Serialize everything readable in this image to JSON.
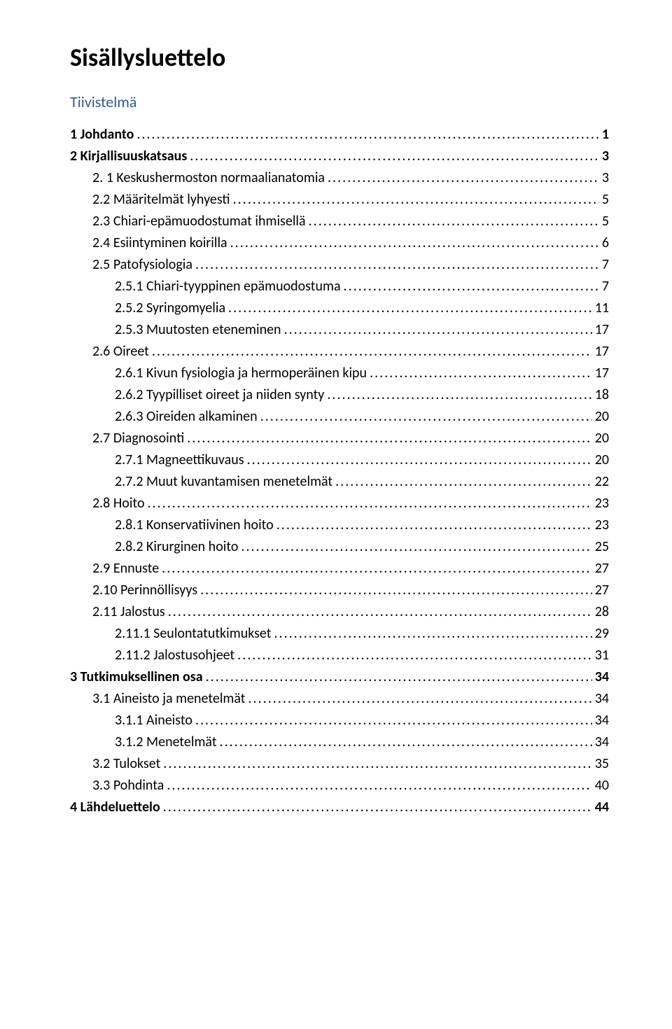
{
  "title": "Sisällysluettelo",
  "subtitle": "Tiivistelmä",
  "toc": [
    {
      "label": "1 Johdanto",
      "page": "1",
      "level": 1,
      "bold": true
    },
    {
      "label": "2 Kirjallisuuskatsaus",
      "page": "3",
      "level": 1,
      "bold": true
    },
    {
      "label": "2. 1 Keskushermoston normaalianatomia",
      "page": "3",
      "level": 2,
      "bold": false
    },
    {
      "label": "2.2 Määritelmät lyhyesti",
      "page": "5",
      "level": 2,
      "bold": false
    },
    {
      "label": "2.3 Chiari-epämuodostumat ihmisellä",
      "page": "5",
      "level": 2,
      "bold": false
    },
    {
      "label": "2.4 Esiintyminen koirilla",
      "page": "6",
      "level": 2,
      "bold": false
    },
    {
      "label": "2.5 Patofysiologia",
      "page": "7",
      "level": 2,
      "bold": false
    },
    {
      "label": "2.5.1 Chiari-tyyppinen epämuodostuma",
      "page": "7",
      "level": 3,
      "bold": false
    },
    {
      "label": "2.5.2 Syringomyelia",
      "page": "11",
      "level": 3,
      "bold": false
    },
    {
      "label": "2.5.3 Muutosten eteneminen",
      "page": "17",
      "level": 3,
      "bold": false
    },
    {
      "label": "2.6 Oireet",
      "page": "17",
      "level": 2,
      "bold": false
    },
    {
      "label": "2.6.1 Kivun fysiologia ja hermoperäinen kipu",
      "page": "17",
      "level": 3,
      "bold": false
    },
    {
      "label": "2.6.2 Tyypilliset oireet ja niiden synty",
      "page": "18",
      "level": 3,
      "bold": false
    },
    {
      "label": "2.6.3 Oireiden alkaminen",
      "page": "20",
      "level": 3,
      "bold": false
    },
    {
      "label": "2.7 Diagnosointi",
      "page": "20",
      "level": 2,
      "bold": false
    },
    {
      "label": "2.7.1 Magneettikuvaus",
      "page": "20",
      "level": 3,
      "bold": false
    },
    {
      "label": "2.7.2 Muut kuvantamisen menetelmät",
      "page": "22",
      "level": 3,
      "bold": false
    },
    {
      "label": "2.8 Hoito",
      "page": "23",
      "level": 2,
      "bold": false
    },
    {
      "label": "2.8.1 Konservatiivinen hoito",
      "page": "23",
      "level": 3,
      "bold": false
    },
    {
      "label": "2.8.2 Kirurginen hoito",
      "page": "25",
      "level": 3,
      "bold": false
    },
    {
      "label": "2.9 Ennuste",
      "page": "27",
      "level": 2,
      "bold": false
    },
    {
      "label": "2.10 Perinnöllisyys",
      "page": "27",
      "level": 2,
      "bold": false
    },
    {
      "label": "2.11 Jalostus",
      "page": "28",
      "level": 2,
      "bold": false
    },
    {
      "label": "2.11.1 Seulontatutkimukset",
      "page": "29",
      "level": 3,
      "bold": false
    },
    {
      "label": "2.11.2 Jalostusohjeet",
      "page": "31",
      "level": 3,
      "bold": false
    },
    {
      "label": "3 Tutkimuksellinen osa",
      "page": "34",
      "level": 1,
      "bold": true
    },
    {
      "label": "3.1 Aineisto ja menetelmät",
      "page": "34",
      "level": 2,
      "bold": false
    },
    {
      "label": "3.1.1 Aineisto",
      "page": "34",
      "level": 3,
      "bold": false
    },
    {
      "label": "3.1.2 Menetelmät",
      "page": "34",
      "level": 3,
      "bold": false
    },
    {
      "label": "3.2 Tulokset",
      "page": "35",
      "level": 2,
      "bold": false
    },
    {
      "label": "3.3 Pohdinta",
      "page": "40",
      "level": 2,
      "bold": false
    },
    {
      "label": "4 Lähdeluettelo",
      "page": "44",
      "level": 1,
      "bold": true
    }
  ]
}
